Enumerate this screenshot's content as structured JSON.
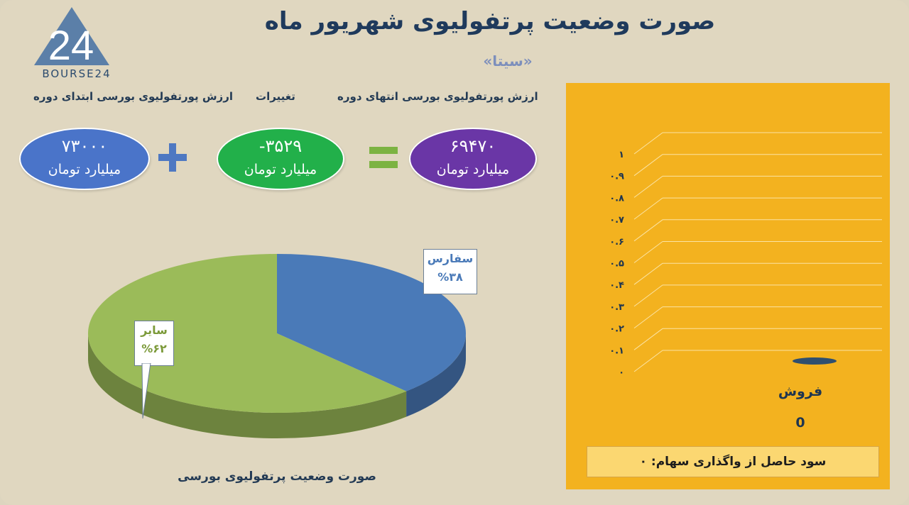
{
  "header": {
    "title": "صورت وضعیت پرتفولیوی شهریور ماه",
    "subtitle": "«سیتا»",
    "logo_text": "BOURSE24"
  },
  "summary": {
    "end_label": "ارزش پورتفولیوی بورسی انتهای دوره",
    "change_label": "تغییرات",
    "start_label": "ارزش پورتفولیوی بورسی ابتدای دوره",
    "end_value": "۶۹۴۷۰",
    "change_value": "-۳۵۲۹",
    "start_value": "۷۳۰۰۰",
    "unit": "میلیارد تومان",
    "colors": {
      "end": "#6a36a6",
      "change": "#22b04a",
      "start": "#4a74c9",
      "operator": "#4e78c2",
      "equals": "#7cb342"
    }
  },
  "chart_data": [
    {
      "type": "pie",
      "title": "صورت وضعیت پرتفولیوی بورسی",
      "slices": [
        {
          "name": "سفارس",
          "value": 38,
          "label": "%۳۸",
          "color": "#4a7ab8"
        },
        {
          "name": "سایر",
          "value": 62,
          "label": "%۶۲",
          "color": "#9bbb59"
        }
      ]
    },
    {
      "type": "bar",
      "categories": [
        "فروش"
      ],
      "values": [
        0
      ],
      "value_labels": [
        "0"
      ],
      "ylim": [
        0,
        1
      ],
      "yticks": [
        {
          "value": 0,
          "label": "۰"
        },
        {
          "value": 0.1,
          "label": "۰.۱"
        },
        {
          "value": 0.2,
          "label": "۰.۲"
        },
        {
          "value": 0.3,
          "label": "۰.۳"
        },
        {
          "value": 0.4,
          "label": "۰.۴"
        },
        {
          "value": 0.5,
          "label": "۰.۵"
        },
        {
          "value": 0.6,
          "label": "۰.۶"
        },
        {
          "value": 0.7,
          "label": "۰.۷"
        },
        {
          "value": 0.8,
          "label": "۰.۸"
        },
        {
          "value": 0.9,
          "label": "۰.۹"
        },
        {
          "value": 1,
          "label": "۱"
        }
      ],
      "grid": true,
      "background": "#f3b21f",
      "bar_color": "#2f4f6f"
    }
  ],
  "profit": {
    "label": "سود حاصل از واگذاری سهام: ۰"
  }
}
